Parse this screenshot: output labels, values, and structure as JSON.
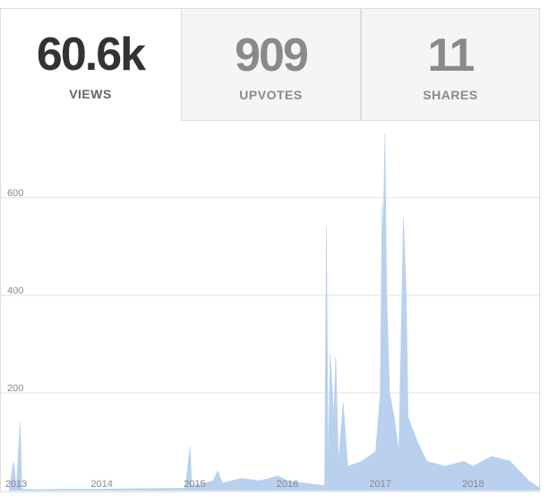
{
  "tabs": [
    {
      "value": "60.6k",
      "label": "VIEWS"
    },
    {
      "value": "909",
      "label": "UPVOTES"
    },
    {
      "value": "11",
      "label": "SHARES"
    }
  ],
  "chart_data": {
    "type": "area",
    "color": "#b9d1ee",
    "grid": true,
    "xlim": [
      2013,
      2018.72
    ],
    "xticks": [
      2013,
      2014,
      2015,
      2016,
      2017,
      2018
    ],
    "ylim": [
      0,
      750
    ],
    "yticks": [
      200,
      400,
      600
    ],
    "x": [
      2013.0,
      2013.05,
      2013.08,
      2013.12,
      2013.14,
      2013.3,
      2013.6,
      2014.0,
      2014.5,
      2014.9,
      2014.95,
      2014.97,
      2015.1,
      2015.2,
      2015.25,
      2015.3,
      2015.5,
      2015.7,
      2015.9,
      2016.0,
      2016.2,
      2016.4,
      2016.42,
      2016.44,
      2016.46,
      2016.5,
      2016.52,
      2016.55,
      2016.6,
      2016.65,
      2016.8,
      2016.95,
      2017.0,
      2017.02,
      2017.03,
      2017.05,
      2017.07,
      2017.1,
      2017.15,
      2017.2,
      2017.25,
      2017.28,
      2017.3,
      2017.4,
      2017.5,
      2017.7,
      2017.9,
      2018.0,
      2018.2,
      2018.4,
      2018.5,
      2018.6,
      2018.72
    ],
    "values": [
      0,
      60,
      5,
      140,
      3,
      2,
      3,
      3,
      4,
      5,
      90,
      10,
      15,
      20,
      40,
      15,
      25,
      20,
      30,
      20,
      15,
      10,
      540,
      40,
      280,
      150,
      275,
      60,
      180,
      50,
      60,
      80,
      200,
      590,
      520,
      730,
      400,
      200,
      150,
      80,
      560,
      400,
      150,
      100,
      60,
      50,
      60,
      50,
      70,
      60,
      40,
      20,
      5
    ]
  }
}
